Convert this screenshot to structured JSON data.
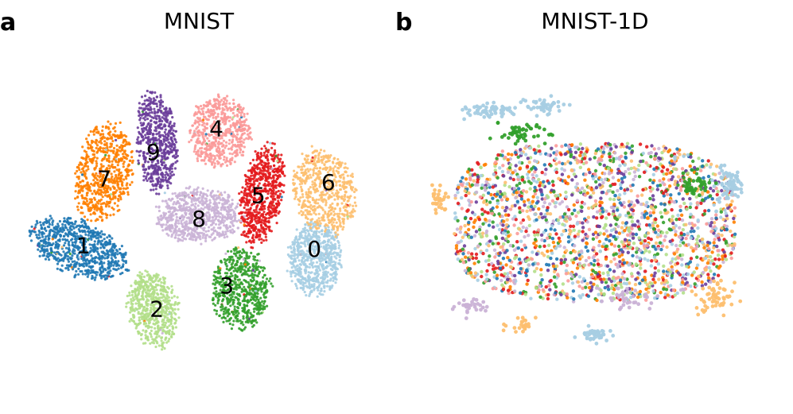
{
  "figure": {
    "panels": [
      {
        "letter": "a",
        "title": "MNIST"
      },
      {
        "letter": "b",
        "title": "MNIST-1D"
      }
    ]
  },
  "chart_data": [
    {
      "type": "scatter",
      "panel": "a",
      "title": "MNIST",
      "xlabel": "",
      "ylabel": "",
      "axes": "off",
      "grid": false,
      "legend": "none",
      "xlim": [
        0,
        100
      ],
      "ylim": [
        0,
        100
      ],
      "class_colors": {
        "0": "#a6cee3",
        "1": "#1f78b4",
        "2": "#b2df8a",
        "3": "#33a02c",
        "4": "#fb9a99",
        "5": "#e31a1c",
        "6": "#fdbf6f",
        "7": "#ff7f00",
        "8": "#cab2d6",
        "9": "#6a3d9a"
      },
      "clusters": [
        {
          "label": "0",
          "center": [
            83,
            38
          ],
          "spread": [
            7.5,
            11
          ],
          "rotation": 0,
          "count": 650
        },
        {
          "label": "1",
          "center": [
            16,
            41
          ],
          "spread": [
            14.5,
            8
          ],
          "rotation": -25,
          "count": 750
        },
        {
          "label": "2",
          "center": [
            37,
            23
          ],
          "spread": [
            7,
            12
          ],
          "rotation": 10,
          "count": 600
        },
        {
          "label": "3",
          "center": [
            62,
            29
          ],
          "spread": [
            8.5,
            12
          ],
          "rotation": 0,
          "count": 650
        },
        {
          "label": "4",
          "center": [
            56,
            76
          ],
          "spread": [
            8.5,
            11
          ],
          "rotation": 0,
          "count": 600
        },
        {
          "label": "5",
          "center": [
            68,
            57
          ],
          "spread": [
            6,
            15
          ],
          "rotation": -10,
          "count": 650
        },
        {
          "label": "6",
          "center": [
            86,
            58
          ],
          "spread": [
            9,
            13
          ],
          "rotation": 15,
          "count": 600
        },
        {
          "label": "7",
          "center": [
            23,
            64
          ],
          "spread": [
            8,
            15
          ],
          "rotation": -10,
          "count": 650
        },
        {
          "label": "8",
          "center": [
            50,
            51
          ],
          "spread": [
            12,
            8
          ],
          "rotation": 0,
          "count": 700
        },
        {
          "label": "9",
          "center": [
            38,
            73
          ],
          "spread": [
            6,
            15
          ],
          "rotation": 5,
          "count": 600
        }
      ],
      "label_positions": [
        {
          "label": "0",
          "x": 83,
          "y": 41
        },
        {
          "label": "1",
          "x": 17,
          "y": 42
        },
        {
          "label": "2",
          "x": 38,
          "y": 23
        },
        {
          "label": "3",
          "x": 58,
          "y": 30
        },
        {
          "label": "4",
          "x": 55,
          "y": 77
        },
        {
          "label": "5",
          "x": 67,
          "y": 57
        },
        {
          "label": "6",
          "x": 87,
          "y": 61
        },
        {
          "label": "7",
          "x": 23,
          "y": 62
        },
        {
          "label": "8",
          "x": 50,
          "y": 50
        },
        {
          "label": "9",
          "x": 37,
          "y": 70
        }
      ]
    },
    {
      "type": "scatter",
      "panel": "b",
      "title": "MNIST-1D",
      "xlabel": "",
      "ylabel": "",
      "axes": "off",
      "grid": false,
      "legend": "none",
      "xlim": [
        0,
        100
      ],
      "ylim": [
        0,
        100
      ],
      "class_colors": {
        "0": "#a6cee3",
        "1": "#1f78b4",
        "2": "#b2df8a",
        "3": "#33a02c",
        "4": "#fb9a99",
        "5": "#e31a1c",
        "6": "#fdbf6f",
        "7": "#ff7f00",
        "8": "#cab2d6",
        "9": "#6a3d9a"
      },
      "main_cloud": {
        "center": [
          50,
          50
        ],
        "spread": [
          40,
          27
        ],
        "count": 2200
      },
      "outlier_groups": [
        {
          "label": "0",
          "center": [
            20,
            88
          ],
          "spread": [
            6,
            2
          ],
          "count": 60
        },
        {
          "label": "0",
          "center": [
            35,
            90
          ],
          "spread": [
            5,
            2
          ],
          "count": 50
        },
        {
          "label": "0",
          "center": [
            88,
            63
          ],
          "spread": [
            4,
            5
          ],
          "count": 70
        },
        {
          "label": "0",
          "center": [
            50,
            12
          ],
          "spread": [
            4,
            2
          ],
          "count": 40
        },
        {
          "label": "6",
          "center": [
            6,
            58
          ],
          "spread": [
            2,
            5
          ],
          "count": 30
        },
        {
          "label": "6",
          "center": [
            84,
            25
          ],
          "spread": [
            5,
            5
          ],
          "count": 60
        },
        {
          "label": "6",
          "center": [
            30,
            15
          ],
          "spread": [
            4,
            2
          ],
          "count": 25
        },
        {
          "label": "3",
          "center": [
            30,
            80
          ],
          "spread": [
            6,
            3
          ],
          "count": 50
        },
        {
          "label": "3",
          "center": [
            78,
            62
          ],
          "spread": [
            3,
            3
          ],
          "count": 40
        },
        {
          "label": "8",
          "center": [
            15,
            22
          ],
          "spread": [
            5,
            3
          ],
          "count": 30
        },
        {
          "label": "8",
          "center": [
            60,
            24
          ],
          "spread": [
            6,
            3
          ],
          "count": 30
        }
      ]
    }
  ]
}
